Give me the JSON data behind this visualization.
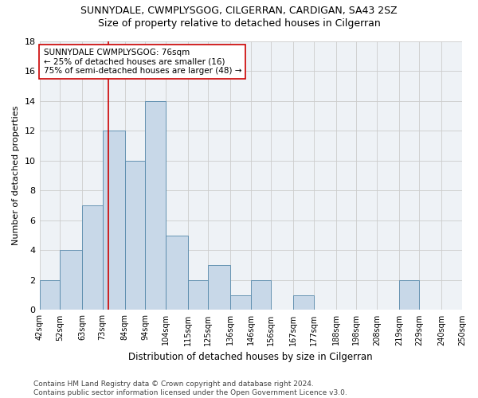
{
  "title": "SUNNYDALE, CWMPLYSGOG, CILGERRAN, CARDIGAN, SA43 2SZ",
  "subtitle": "Size of property relative to detached houses in Cilgerran",
  "xlabel": "Distribution of detached houses by size in Cilgerran",
  "ylabel": "Number of detached properties",
  "bar_color": "#c8d8e8",
  "bar_edge_color": "#5588aa",
  "bar_values": [
    2,
    4,
    7,
    12,
    10,
    14,
    5,
    2,
    3,
    1,
    2,
    0,
    1,
    0,
    0,
    0,
    0,
    2,
    0,
    0
  ],
  "bin_edges": [
    42,
    52,
    63,
    73,
    84,
    94,
    104,
    115,
    125,
    136,
    146,
    156,
    167,
    177,
    188,
    198,
    208,
    219,
    229,
    240,
    250
  ],
  "tick_labels": [
    "42sqm",
    "52sqm",
    "63sqm",
    "73sqm",
    "84sqm",
    "94sqm",
    "104sqm",
    "115sqm",
    "125sqm",
    "136sqm",
    "146sqm",
    "156sqm",
    "167sqm",
    "177sqm",
    "188sqm",
    "198sqm",
    "208sqm",
    "219sqm",
    "229sqm",
    "240sqm",
    "250sqm"
  ],
  "vline_x": 76,
  "vline_color": "#cc0000",
  "annotation_text": "SUNNYDALE CWMPLYSGOG: 76sqm\n← 25% of detached houses are smaller (16)\n75% of semi-detached houses are larger (48) →",
  "annotation_box_color": "#ffffff",
  "annotation_border_color": "#cc0000",
  "ylim": [
    0,
    18
  ],
  "yticks": [
    0,
    2,
    4,
    6,
    8,
    10,
    12,
    14,
    16,
    18
  ],
  "grid_color": "#cccccc",
  "background_color": "#eef2f6",
  "footer_text": "Contains HM Land Registry data © Crown copyright and database right 2024.\nContains public sector information licensed under the Open Government Licence v3.0.",
  "title_fontsize": 9,
  "subtitle_fontsize": 9,
  "annotation_fontsize": 7.5,
  "footer_fontsize": 6.5
}
